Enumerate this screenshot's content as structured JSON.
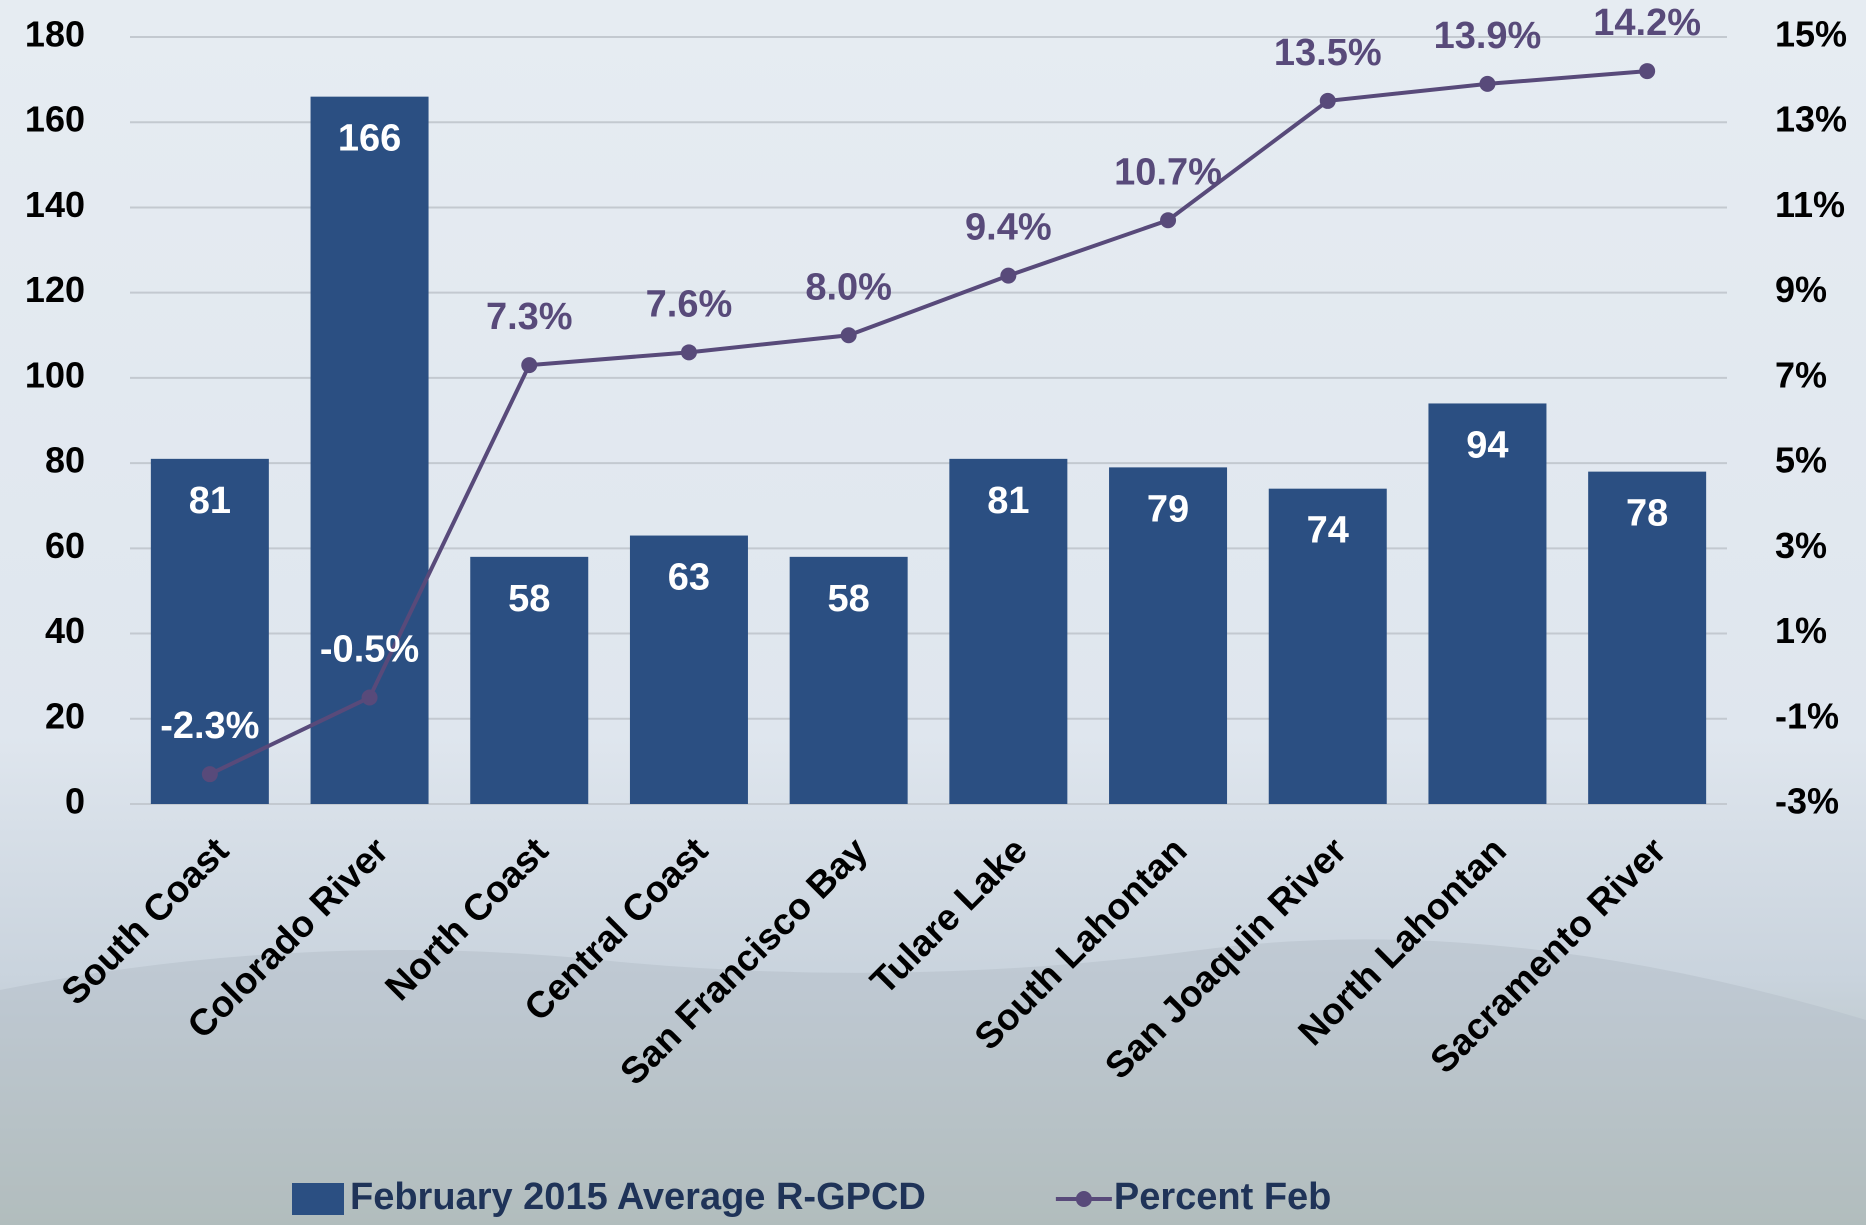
{
  "chart_data": {
    "type": "bar_line",
    "categories": [
      "South Coast",
      "Colorado River",
      "North Coast",
      "Central Coast",
      "San Francisco Bay",
      "Tulare Lake",
      "South Lahontan",
      "San Joaquin River",
      "North Lahontan",
      "Sacramento River"
    ],
    "series": [
      {
        "name": "February 2015 Average R-GPCD",
        "type": "bar",
        "color": "#2b4f82",
        "values": [
          81,
          166,
          58,
          63,
          58,
          81,
          79,
          74,
          94,
          78
        ]
      },
      {
        "name": "Percent Feb",
        "type": "line",
        "axis": "y2",
        "color": "#584a7a",
        "values": [
          -2.3,
          -0.5,
          7.3,
          7.6,
          8.0,
          9.4,
          10.7,
          13.5,
          13.9,
          14.2
        ],
        "value_labels": [
          "-2.3%",
          "-0.5%",
          "7.3%",
          "7.6%",
          "8.0%",
          "9.4%",
          "10.7%",
          "13.5%",
          "13.9%",
          "14.2%"
        ]
      }
    ],
    "ylim": [
      0,
      180
    ],
    "yticks": [
      0,
      20,
      40,
      60,
      80,
      100,
      120,
      140,
      160,
      180
    ],
    "y2lim": [
      -3,
      15
    ],
    "y2ticks": [
      {
        "value": -3,
        "label": "-3%"
      },
      {
        "value": -1,
        "label": "-1%"
      },
      {
        "value": 1,
        "label": "1%"
      },
      {
        "value": 3,
        "label": "3%"
      },
      {
        "value": 5,
        "label": "5%"
      },
      {
        "value": 7,
        "label": "7%"
      },
      {
        "value": 9,
        "label": "9%"
      },
      {
        "value": 11,
        "label": "11%"
      },
      {
        "value": 13,
        "label": "13%"
      },
      {
        "value": 15,
        "label": "15%"
      }
    ],
    "grid": true,
    "legend": "bottom"
  }
}
